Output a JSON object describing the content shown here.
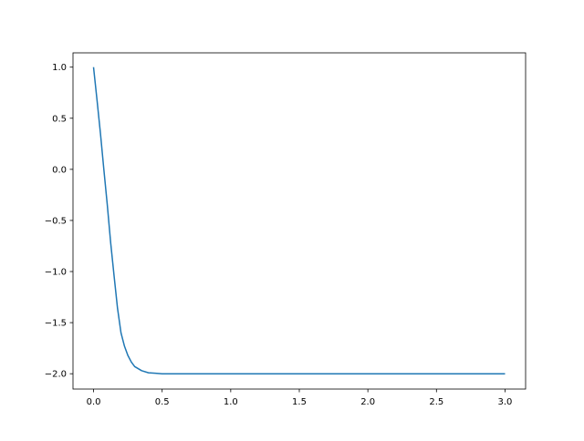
{
  "chart_data": {
    "type": "line",
    "title": "",
    "xlabel": "",
    "ylabel": "",
    "xlim": [
      -0.15,
      3.15
    ],
    "ylim": [
      -2.15,
      1.14
    ],
    "xticks": [
      "0.0",
      "0.5",
      "1.0",
      "1.5",
      "2.0",
      "2.5",
      "3.0"
    ],
    "yticks": [
      "−2.0",
      "−1.5",
      "−1.0",
      "−0.5",
      "0.0",
      "0.5",
      "1.0"
    ],
    "xtick_values": [
      0,
      0.5,
      1,
      1.5,
      2,
      2.5,
      3
    ],
    "ytick_values": [
      -2,
      -1.5,
      -1,
      -0.5,
      0,
      0.5,
      1
    ],
    "grid": false,
    "series": [
      {
        "color": "#1f77b4",
        "x": [
          0,
          0.025,
          0.05,
          0.075,
          0.1,
          0.125,
          0.15,
          0.175,
          0.2,
          0.225,
          0.25,
          0.275,
          0.3,
          0.35,
          0.4,
          0.45,
          0.5,
          0.6,
          0.8,
          1.0,
          1.5,
          2.0,
          2.5,
          3.0
        ],
        "y": [
          1,
          0.68,
          0.35,
          0.0,
          -0.35,
          -0.72,
          -1.05,
          -1.36,
          -1.6,
          -1.73,
          -1.82,
          -1.885,
          -1.93,
          -1.97,
          -1.99,
          -1.995,
          -2.0,
          -2.0,
          -2.0,
          -2.0,
          -2.0,
          -2.0,
          -2.0,
          -2.0
        ]
      }
    ]
  }
}
